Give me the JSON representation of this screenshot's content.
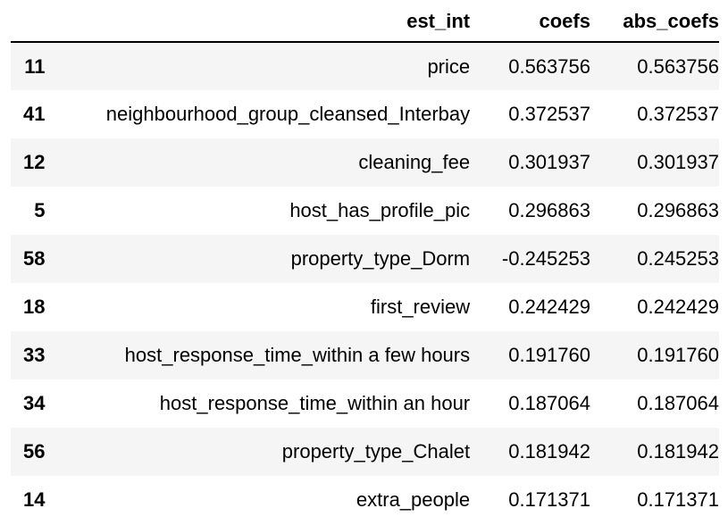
{
  "columns": {
    "index": "",
    "est_int": "est_int",
    "coefs": "coefs",
    "abs_coefs": "abs_coefs"
  },
  "rows": [
    {
      "index": "11",
      "est_int": "price",
      "coefs": "0.563756",
      "abs_coefs": "0.563756"
    },
    {
      "index": "41",
      "est_int": "neighbourhood_group_cleansed_Interbay",
      "coefs": "0.372537",
      "abs_coefs": "0.372537"
    },
    {
      "index": "12",
      "est_int": "cleaning_fee",
      "coefs": "0.301937",
      "abs_coefs": "0.301937"
    },
    {
      "index": "5",
      "est_int": "host_has_profile_pic",
      "coefs": "0.296863",
      "abs_coefs": "0.296863"
    },
    {
      "index": "58",
      "est_int": "property_type_Dorm",
      "coefs": "-0.245253",
      "abs_coefs": "0.245253"
    },
    {
      "index": "18",
      "est_int": "first_review",
      "coefs": "0.242429",
      "abs_coefs": "0.242429"
    },
    {
      "index": "33",
      "est_int": "host_response_time_within a few hours",
      "coefs": "0.191760",
      "abs_coefs": "0.191760"
    },
    {
      "index": "34",
      "est_int": "host_response_time_within an hour",
      "coefs": "0.187064",
      "abs_coefs": "0.187064"
    },
    {
      "index": "56",
      "est_int": "property_type_Chalet",
      "coefs": "0.181942",
      "abs_coefs": "0.181942"
    },
    {
      "index": "14",
      "est_int": "extra_people",
      "coefs": "0.171371",
      "abs_coefs": "0.171371"
    }
  ]
}
